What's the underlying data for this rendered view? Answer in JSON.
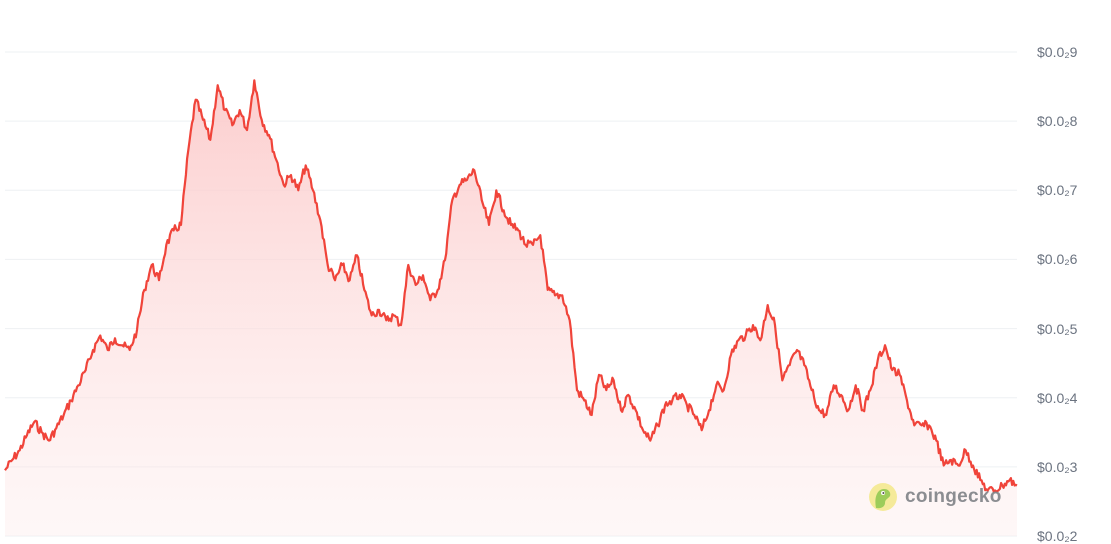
{
  "chart_data": {
    "type": "area",
    "title": "",
    "xlabel": "",
    "ylabel": "",
    "ylim": [
      0.002,
      0.009
    ],
    "grid": true,
    "y_ticks": [
      {
        "value": 0.009,
        "label": "$0.0₂9"
      },
      {
        "value": 0.008,
        "label": "$0.0₂8"
      },
      {
        "value": 0.007,
        "label": "$0.0₂7"
      },
      {
        "value": 0.006,
        "label": "$0.0₂6"
      },
      {
        "value": 0.005,
        "label": "$0.0₂5"
      },
      {
        "value": 0.004,
        "label": "$0.0₂4"
      },
      {
        "value": 0.003,
        "label": "$0.0₂3"
      },
      {
        "value": 0.002,
        "label": "$0.0₂2"
      }
    ],
    "line_color": "#f0443a",
    "fill_color": "#fdd9d9",
    "values": [
      0.00295,
      0.0031,
      0.00324,
      0.00346,
      0.00365,
      0.0035,
      0.00338,
      0.00356,
      0.00375,
      0.00396,
      0.00418,
      0.0044,
      0.00469,
      0.0049,
      0.00469,
      0.00486,
      0.00476,
      0.00469,
      0.00498,
      0.00556,
      0.00592,
      0.0057,
      0.00621,
      0.00642,
      0.0065,
      0.00758,
      0.00831,
      0.00802,
      0.00773,
      0.00852,
      0.00816,
      0.00794,
      0.00816,
      0.00787,
      0.00859,
      0.00802,
      0.0078,
      0.00744,
      0.00708,
      0.00722,
      0.007,
      0.00736,
      0.007,
      0.00657,
      0.00592,
      0.0057,
      0.00592,
      0.0057,
      0.00606,
      0.00556,
      0.00519,
      0.00527,
      0.00512,
      0.00519,
      0.00505,
      0.00592,
      0.00563,
      0.00577,
      0.00541,
      0.00556,
      0.00599,
      0.00686,
      0.00708,
      0.00715,
      0.00729,
      0.00686,
      0.0065,
      0.007,
      0.00671,
      0.0065,
      0.00642,
      0.00621,
      0.00621,
      0.00635,
      0.00556,
      0.00548,
      0.00548,
      0.00512,
      0.00411,
      0.00396,
      0.00375,
      0.00433,
      0.00411,
      0.00425,
      0.00382,
      0.00404,
      0.00382,
      0.00353,
      0.00338,
      0.0036,
      0.00389,
      0.00396,
      0.00404,
      0.00389,
      0.00375,
      0.00353,
      0.00382,
      0.00418,
      0.00411,
      0.00462,
      0.00483,
      0.0049,
      0.00505,
      0.00483,
      0.00534,
      0.00505,
      0.00425,
      0.00447,
      0.00469,
      0.00447,
      0.00411,
      0.00382,
      0.00375,
      0.00418,
      0.00404,
      0.00382,
      0.00418,
      0.00382,
      0.00411,
      0.00454,
      0.00476,
      0.0044,
      0.00433,
      0.00396,
      0.0036,
      0.0036,
      0.0036,
      0.00338,
      0.00302,
      0.0031,
      0.00302,
      0.00324,
      0.00302,
      0.00281,
      0.00266,
      0.00266,
      0.00273,
      0.00281,
      0.00273
    ]
  },
  "watermark": {
    "text": "coingecko"
  }
}
